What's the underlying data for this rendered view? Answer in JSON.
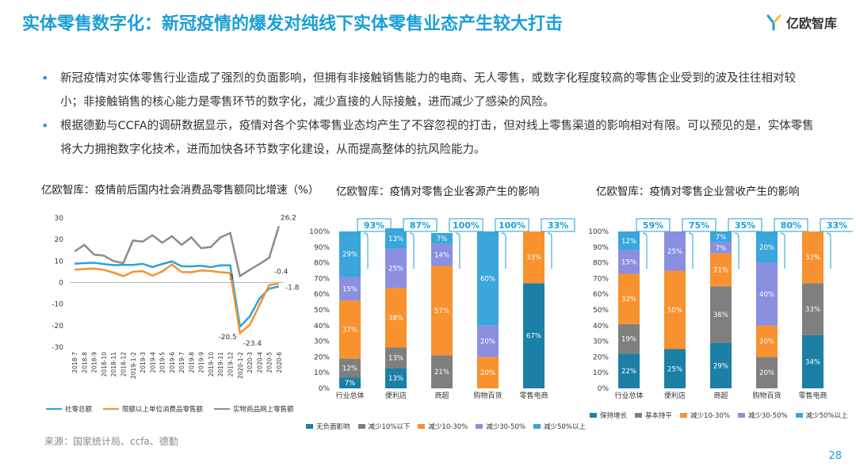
{
  "header": {
    "title": "实体零售数字化：新冠疫情的爆发对纯线下实体零售业态产生较大打击",
    "logo_text": "亿欧智库"
  },
  "bullets": [
    "新冠疫情对实体零售行业造成了强烈的负面影响，但拥有非接触销售能力的电商、无人零售，或数字化程度较高的零售企业受到的波及往往相对较小；非接触销售的核心能力是零售环节的数字化，减少直接的人际接触，进而减少了感染的风险。",
    "根据德勤与CCFA的调研数据显示，疫情对各个实体零售业态均产生了不容忽视的打击，但对线上零售渠道的影响相对有限。可以预见的是，实体零售将大力拥抱数字化技术，进而加快各环节数字化建设，从而提高整体的抗风险能力。"
  ],
  "source": "来源：国家统计局、ccfa、德勤",
  "page_number": "28",
  "colors": {
    "accent": "#1a9fd6",
    "line1": "#29a3db",
    "line2": "#f7922e",
    "line3": "#8c8c8c",
    "seg_dark": "#1b7fa6",
    "seg_gray": "#7f7f7f",
    "seg_orange": "#f7922e",
    "seg_purple": "#8a8fe0",
    "seg_light": "#3aa6dc"
  },
  "chart_data": [
    {
      "type": "line",
      "title": "亿欧智库：疫情前后国内社会消费品零售额同比增速（%）",
      "x": [
        "2018-7",
        "2018-8",
        "2018-9",
        "2018-10",
        "2018-11",
        "2018-12",
        "2019-1-2",
        "2019-3",
        "2019-4",
        "2019-5",
        "2019-6",
        "2019-7",
        "2019-8",
        "2019-9",
        "2019-10",
        "2019-11",
        "2019-12",
        "2020-1-2",
        "2020-3",
        "2020-4",
        "2020-5",
        "2020-6"
      ],
      "ylim": [
        -30,
        30
      ],
      "yticks": [
        "30",
        "20",
        "10",
        "0",
        "-10",
        "-20",
        "-30"
      ],
      "series": [
        {
          "name": "社零总额",
          "values": [
            8.8,
            9.0,
            9.2,
            8.6,
            8.1,
            8.2,
            8.2,
            8.7,
            7.2,
            8.6,
            9.8,
            7.6,
            7.5,
            7.8,
            7.2,
            8.0,
            8.0,
            -20.5,
            -15.8,
            -7.5,
            -2.8,
            -1.8
          ]
        },
        {
          "name": "限额以上单位消费品零售额",
          "values": [
            6.0,
            6.3,
            6.5,
            5.9,
            4.6,
            3.0,
            5.0,
            5.3,
            3.2,
            5.1,
            8.4,
            4.9,
            4.8,
            5.6,
            5.4,
            4.8,
            4.5,
            -23.4,
            -19.7,
            -10.5,
            -1.2,
            -0.4
          ]
        },
        {
          "name": "实物商品网上零售额",
          "values": [
            14.5,
            17.5,
            13.0,
            12.5,
            10.0,
            9.0,
            19.5,
            19.0,
            22.0,
            18.5,
            21.5,
            17.5,
            21.0,
            16.0,
            16.5,
            21.0,
            23.0,
            3.0,
            5.9,
            8.6,
            11.5,
            26.2
          ]
        }
      ],
      "annotations": [
        "26.2",
        "3",
        "-0.4",
        "-1.8",
        "-20.5",
        "-23.4"
      ],
      "legend": "bottom"
    },
    {
      "type": "bar",
      "stacked": true,
      "title": "亿欧智库：疫情对零售企业客源产生的影响",
      "categories": [
        "行业总体",
        "便利店",
        "商超",
        "购物百货",
        "零售电商"
      ],
      "ylim": [
        0,
        100
      ],
      "yticks": [
        "100%",
        "90%",
        "80%",
        "70%",
        "60%",
        "50%",
        "40%",
        "30%",
        "20%",
        "10%",
        "0%"
      ],
      "series": [
        {
          "name": "无负面影响",
          "values": [
            7,
            13,
            0,
            0,
            67
          ],
          "labels": [
            "7%",
            "13%",
            "",
            "",
            "67%"
          ]
        },
        {
          "name": "减少10%以下",
          "values": [
            12,
            13,
            21,
            0,
            0
          ],
          "labels": [
            "12%",
            "13%",
            "21%",
            "",
            ""
          ]
        },
        {
          "name": "减少10-30%",
          "values": [
            37,
            38,
            57,
            20,
            33
          ],
          "labels": [
            "37%",
            "38%",
            "57%",
            "20%",
            "33%"
          ]
        },
        {
          "name": "减少30-50%",
          "values": [
            15,
            25,
            14,
            20,
            0
          ],
          "labels": [
            "15%",
            "25%",
            "14%",
            "20%",
            ""
          ]
        },
        {
          "name": "减少50%以上",
          "values": [
            29,
            13,
            7,
            60,
            0
          ],
          "labels": [
            "29%",
            "13%",
            "7%",
            "60%",
            ""
          ]
        }
      ],
      "callouts": [
        "93%",
        "87%",
        "100%",
        "100%",
        "33%"
      ],
      "legend": "bottom"
    },
    {
      "type": "bar",
      "stacked": true,
      "title": "亿欧智库：疫情对零售企业营收产生的影响",
      "categories": [
        "行业总体",
        "便利店",
        "商超",
        "购物百货",
        "零售电商"
      ],
      "ylim": [
        0,
        100
      ],
      "yticks": [
        "100%",
        "90%",
        "80%",
        "70%",
        "60%",
        "50%",
        "40%",
        "30%",
        "20%",
        "10%",
        "0%"
      ],
      "series": [
        {
          "name": "保持增长",
          "values": [
            22,
            25,
            29,
            0,
            34
          ],
          "labels": [
            "22%",
            "25%",
            "29%",
            "",
            "34%"
          ]
        },
        {
          "name": "基本持平",
          "values": [
            19,
            0,
            36,
            20,
            33
          ],
          "labels": [
            "19%",
            "",
            "36%",
            "20%",
            "33%"
          ]
        },
        {
          "name": "减少10-30%",
          "values": [
            32,
            50,
            21,
            20,
            33
          ],
          "labels": [
            "32%",
            "50%",
            "21%",
            "20%",
            "33%"
          ]
        },
        {
          "name": "减少30-50%",
          "values": [
            15,
            25,
            7,
            40,
            0
          ],
          "labels": [
            "15%",
            "25%",
            "7%",
            "40%",
            ""
          ]
        },
        {
          "name": "减少50%以上",
          "values": [
            12,
            0,
            7,
            20,
            0
          ],
          "labels": [
            "12%",
            "",
            "7%",
            "20%",
            ""
          ]
        }
      ],
      "callouts": [
        "59%",
        "75%",
        "35%",
        "80%",
        "33%"
      ],
      "legend": "bottom"
    }
  ]
}
